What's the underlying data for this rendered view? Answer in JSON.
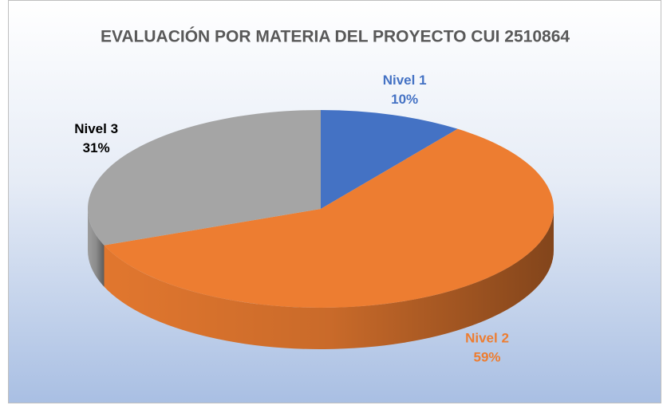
{
  "chart_data": {
    "type": "pie3d",
    "title": "EVALUACIÓN POR MATERIA  DEL PROYECTO CUI 2510864",
    "categories": [
      "Nivel 1",
      "Nivel 2",
      "Nivel 3"
    ],
    "values": [
      10,
      59,
      31
    ],
    "value_labels": [
      "10%",
      "59%",
      "31%"
    ],
    "colors": [
      "#4472c4",
      "#ed7d31",
      "#a5a5a5"
    ]
  }
}
